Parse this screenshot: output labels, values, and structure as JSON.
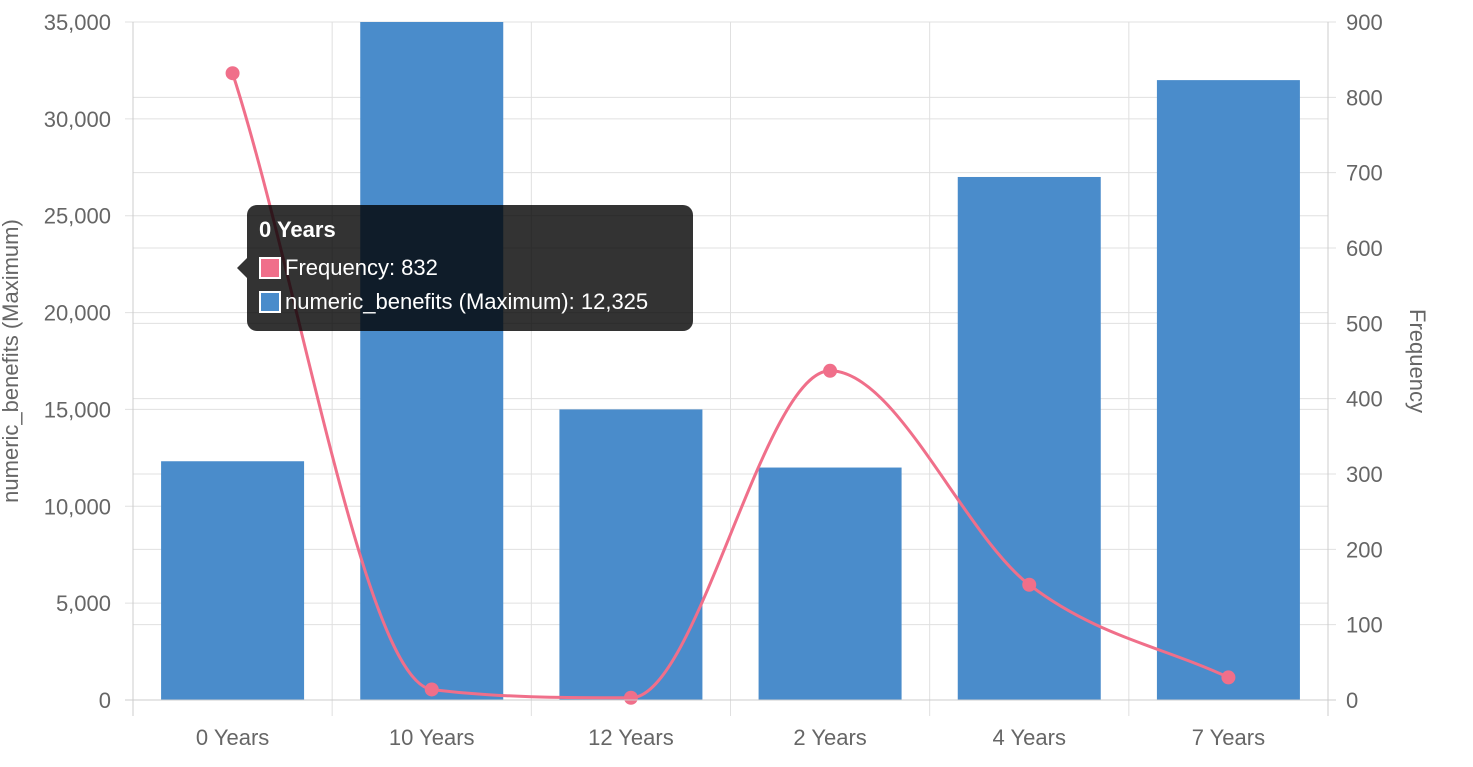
{
  "chart_data": {
    "type": "bar",
    "categories": [
      "0 Years",
      "10 Years",
      "12 Years",
      "2 Years",
      "4 Years",
      "7 Years"
    ],
    "series": [
      {
        "name": "numeric_benefits (Maximum)",
        "type": "bar",
        "axis": "left",
        "color": "#4a8ccb",
        "values": [
          12325,
          35000,
          15000,
          12000,
          27000,
          32000
        ]
      },
      {
        "name": "Frequency",
        "type": "line",
        "axis": "right",
        "color": "#f06f8a",
        "values": [
          832,
          14,
          3,
          437,
          153,
          30
        ]
      }
    ],
    "ylabel": "numeric_benefits (Maximum)",
    "y2label": "Frequency",
    "xlabel": "",
    "ylim": [
      0,
      35000
    ],
    "y2lim": [
      0,
      900
    ],
    "yticks": [
      "0",
      "5,000",
      "10,000",
      "15,000",
      "20,000",
      "25,000",
      "30,000",
      "35,000"
    ],
    "y2ticks": [
      "0",
      "100",
      "200",
      "300",
      "400",
      "500",
      "600",
      "700",
      "800",
      "900"
    ],
    "grid": true,
    "legend": "none"
  },
  "tooltip": {
    "title": "0 Years",
    "rows": [
      {
        "label": "Frequency: 832",
        "color": "#f06f8a"
      },
      {
        "label": "numeric_benefits (Maximum): 12,325",
        "color": "#4a8ccb"
      }
    ]
  }
}
